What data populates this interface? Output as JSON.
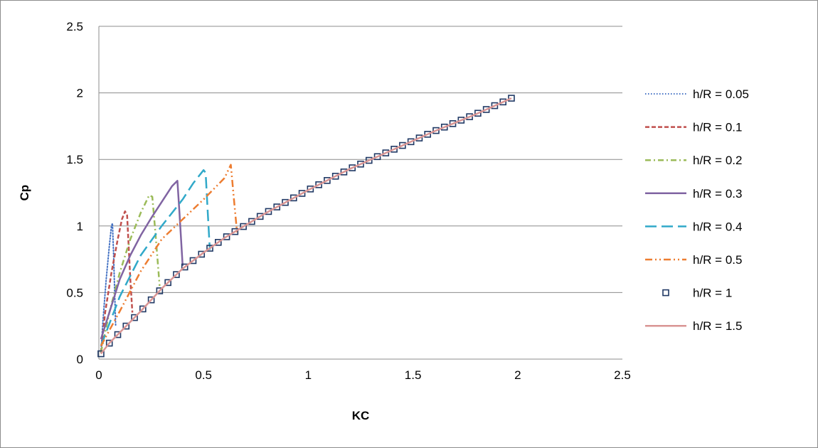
{
  "chart_data": {
    "type": "line",
    "title": "",
    "xlabel": "KC",
    "ylabel": "Cp",
    "xlim": [
      0,
      2.5
    ],
    "ylim": [
      0,
      2.5
    ],
    "x_ticks": [
      0,
      0.5,
      1,
      1.5,
      2,
      2.5
    ],
    "y_ticks": [
      0,
      0.5,
      1,
      1.5,
      2,
      2.5
    ],
    "x_tick_labels": [
      "0",
      "0.5",
      "1",
      "1.5",
      "2",
      "2.5"
    ],
    "y_tick_labels": [
      "0",
      "0.5",
      "1",
      "1.5",
      "2",
      "2.5"
    ],
    "grid": "horizontal",
    "legend_position": "right",
    "series": [
      {
        "name": "h/R = 0.05",
        "color": "#4472C4",
        "dash": "dotted",
        "x": [
          0.01,
          0.02,
          0.035,
          0.05,
          0.06,
          0.065,
          0.07,
          0.08
        ],
        "y": [
          0.05,
          0.3,
          0.6,
          0.85,
          1.0,
          1.02,
          0.8,
          0.25
        ]
      },
      {
        "name": "h/R = 0.1",
        "color": "#C0504D",
        "dash": "dashed",
        "x": [
          0.01,
          0.03,
          0.06,
          0.09,
          0.11,
          0.125,
          0.135,
          0.15,
          0.16
        ],
        "y": [
          0.05,
          0.35,
          0.65,
          0.9,
          1.05,
          1.11,
          1.08,
          0.6,
          0.35
        ]
      },
      {
        "name": "h/R = 0.2",
        "color": "#9BBB59",
        "dash": "dashdot",
        "x": [
          0.01,
          0.05,
          0.1,
          0.15,
          0.2,
          0.24,
          0.255,
          0.27,
          0.29
        ],
        "y": [
          0.05,
          0.35,
          0.65,
          0.9,
          1.1,
          1.23,
          1.22,
          0.95,
          0.55
        ]
      },
      {
        "name": "h/R = 0.3",
        "color": "#8064A2",
        "dash": "solid",
        "x": [
          0.01,
          0.05,
          0.1,
          0.15,
          0.2,
          0.25,
          0.3,
          0.35,
          0.375,
          0.385,
          0.4
        ],
        "y": [
          0.15,
          0.35,
          0.6,
          0.78,
          0.93,
          1.06,
          1.18,
          1.3,
          1.34,
          1.1,
          0.7
        ]
      },
      {
        "name": "h/R = 0.4",
        "color": "#31A9C9",
        "dash": "longdash",
        "x": [
          0.01,
          0.1,
          0.2,
          0.3,
          0.4,
          0.45,
          0.5,
          0.51,
          0.52,
          0.53
        ],
        "y": [
          0.1,
          0.47,
          0.78,
          1.0,
          1.2,
          1.32,
          1.42,
          1.4,
          1.1,
          0.82
        ]
      },
      {
        "name": "h/R = 0.5",
        "color": "#ED7D31",
        "dash": "dashdotdot",
        "x": [
          0.01,
          0.1,
          0.2,
          0.3,
          0.4,
          0.5,
          0.6,
          0.63,
          0.645,
          0.66
        ],
        "y": [
          0.1,
          0.36,
          0.66,
          0.9,
          1.05,
          1.2,
          1.36,
          1.46,
          1.2,
          0.95
        ]
      },
      {
        "name": "h/R = 1",
        "color": "#1F3864",
        "dash": "markers",
        "x_start": 0.01,
        "x_step": 0.04,
        "x_end": 1.97,
        "formula_note": "",
        "x": [],
        "y": []
      },
      {
        "name": "h/R = 1.5",
        "color": "#D99594",
        "dash": "solid",
        "x": [
          0.01,
          0.05,
          0.1,
          0.2,
          0.3,
          0.4,
          0.5,
          0.6,
          0.8,
          1.0,
          1.2,
          1.4,
          1.6,
          1.8,
          1.97
        ],
        "y": [
          0.04,
          0.12,
          0.2,
          0.36,
          0.53,
          0.68,
          0.8,
          0.91,
          1.1,
          1.27,
          1.43,
          1.57,
          1.71,
          1.84,
          1.96
        ]
      }
    ]
  }
}
